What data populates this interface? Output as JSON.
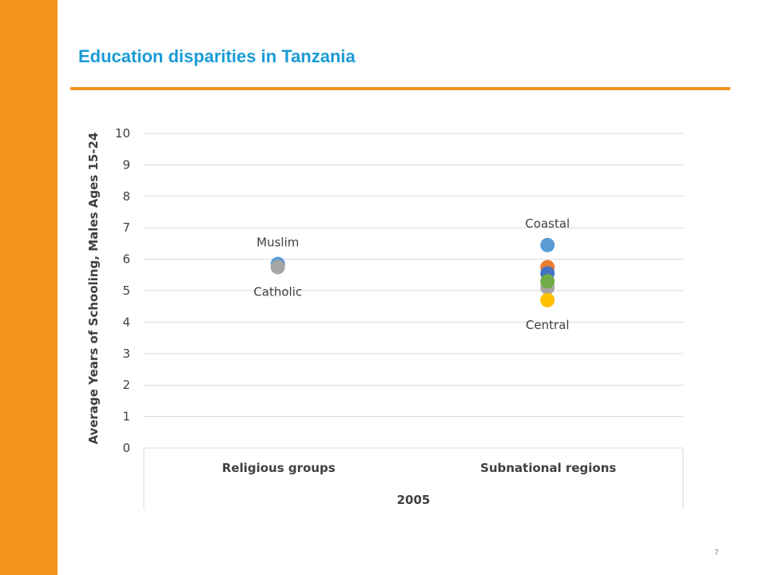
{
  "slide": {
    "title": "Education disparities in Tanzania",
    "page_number": "7"
  },
  "colors": {
    "accent_orange": "#f7941d",
    "title_blue": "#1a9bd7"
  },
  "chart_data": {
    "type": "scatter",
    "ylabel": "Average Years of Schooling, Males Ages 15-24",
    "ylim": [
      0,
      10
    ],
    "yticks": [
      0,
      1,
      2,
      3,
      4,
      5,
      6,
      7,
      8,
      9,
      10
    ],
    "grid": true,
    "categories": [
      "Religious groups",
      "Subnational regions"
    ],
    "group_label": "2005",
    "points": [
      {
        "category": "Religious groups",
        "y": 5.85,
        "label": "Muslim",
        "label_position": "above",
        "color": "#5b9bd5"
      },
      {
        "category": "Religious groups",
        "y": 5.75,
        "label": "Catholic",
        "label_position": "below",
        "color": "#a5a5a5"
      },
      {
        "category": "Subnational regions",
        "y": 6.45,
        "label": "Coastal",
        "label_position": "above",
        "color": "#5b9bd5"
      },
      {
        "category": "Subnational regions",
        "y": 5.75,
        "label": "",
        "color": "#ed7d31"
      },
      {
        "category": "Subnational regions",
        "y": 5.55,
        "label": "",
        "color": "#4472c4"
      },
      {
        "category": "Subnational regions",
        "y": 5.1,
        "label": "",
        "color": "#a5a5a5"
      },
      {
        "category": "Subnational regions",
        "y": 5.3,
        "label": "",
        "color": "#70ad47"
      },
      {
        "category": "Subnational regions",
        "y": 4.7,
        "label": "Central",
        "label_position": "below",
        "color": "#ffc000"
      }
    ]
  }
}
